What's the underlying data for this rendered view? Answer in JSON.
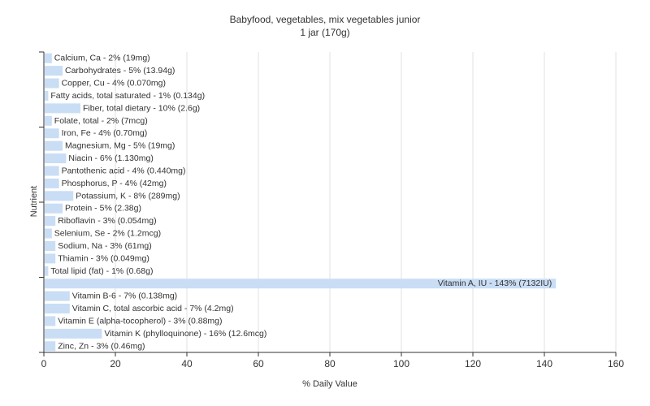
{
  "chart_data": {
    "type": "bar",
    "orientation": "horizontal",
    "title": "Babyfood, vegetables, mix vegetables junior",
    "subtitle": "1 jar (170g)",
    "xlabel": "% Daily Value",
    "ylabel": "Nutrient",
    "xlim": [
      0,
      160
    ],
    "xticks": [
      0,
      20,
      40,
      60,
      80,
      100,
      120,
      140,
      160
    ],
    "grid": true,
    "bar_color": "#c9ddf5",
    "categories": [
      "Calcium, Ca",
      "Carbohydrates",
      "Copper, Cu",
      "Fatty acids, total saturated",
      "Fiber, total dietary",
      "Folate, total",
      "Iron, Fe",
      "Magnesium, Mg",
      "Niacin",
      "Pantothenic acid",
      "Phosphorus, P",
      "Potassium, K",
      "Protein",
      "Riboflavin",
      "Selenium, Se",
      "Sodium, Na",
      "Thiamin",
      "Total lipid (fat)",
      "Vitamin A, IU",
      "Vitamin B-6",
      "Vitamin C, total ascorbic acid",
      "Vitamin E (alpha-tocopherol)",
      "Vitamin K (phylloquinone)",
      "Zinc, Zn"
    ],
    "values": [
      2,
      5,
      4,
      1,
      10,
      2,
      4,
      5,
      6,
      4,
      4,
      8,
      5,
      3,
      2,
      3,
      3,
      1,
      143,
      7,
      7,
      3,
      16,
      3
    ],
    "labels": [
      "Calcium, Ca - 2% (19mg)",
      "Carbohydrates - 5% (13.94g)",
      "Copper, Cu - 4% (0.070mg)",
      "Fatty acids, total saturated - 1% (0.134g)",
      "Fiber, total dietary - 10% (2.6g)",
      "Folate, total - 2% (7mcg)",
      "Iron, Fe - 4% (0.70mg)",
      "Magnesium, Mg - 5% (19mg)",
      "Niacin - 6% (1.130mg)",
      "Pantothenic acid - 4% (0.440mg)",
      "Phosphorus, P - 4% (42mg)",
      "Potassium, K - 8% (289mg)",
      "Protein - 5% (2.38g)",
      "Riboflavin - 3% (0.054mg)",
      "Selenium, Se - 2% (1.2mcg)",
      "Sodium, Na - 3% (61mg)",
      "Thiamin - 3% (0.049mg)",
      "Total lipid (fat) - 1% (0.68g)",
      "Vitamin A, IU - 143% (7132IU)",
      "Vitamin B-6 - 7% (0.138mg)",
      "Vitamin C, total ascorbic acid - 7% (4.2mg)",
      "Vitamin E (alpha-tocopherol) - 3% (0.88mg)",
      "Vitamin K (phylloquinone) - 16% (12.6mcg)",
      "Zinc, Zn - 3% (0.46mg)"
    ]
  }
}
